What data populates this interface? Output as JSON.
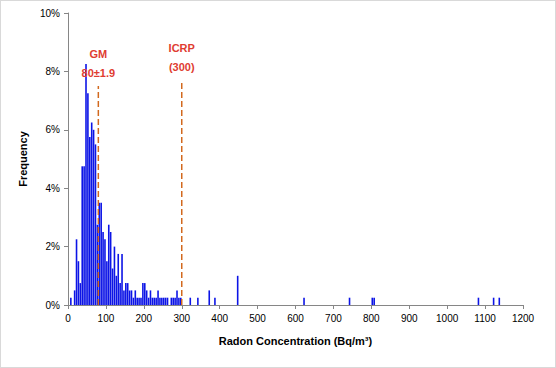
{
  "chart_data": {
    "type": "histogram",
    "x_label": "Radon Concentration (Bq/m³)",
    "y_label": "Frequency",
    "color": "#0c14e6",
    "grid": false,
    "bins": [
      0,
      5,
      10,
      15,
      20,
      25,
      30,
      35,
      40,
      45,
      50,
      55,
      60,
      65,
      70,
      75,
      80,
      85,
      90,
      95,
      100,
      105,
      110,
      115,
      120,
      125,
      130,
      135,
      140,
      145,
      150,
      155,
      160,
      165,
      170,
      175,
      180,
      185,
      190,
      195,
      200,
      205,
      210,
      215,
      220,
      225,
      230,
      235,
      240,
      245,
      250,
      255,
      260,
      265,
      270,
      275,
      280,
      285,
      290,
      295,
      300,
      305,
      310,
      315,
      320,
      325,
      330,
      335,
      340,
      345,
      350,
      355,
      360,
      365,
      370,
      375,
      380,
      385,
      390,
      395,
      400,
      405,
      410,
      415,
      420,
      425,
      430,
      435,
      440,
      445,
      450,
      455,
      460,
      465,
      470,
      475,
      480,
      485,
      490,
      495,
      500,
      505,
      510,
      515,
      520,
      525,
      530,
      535,
      540,
      545,
      550,
      555,
      560,
      565,
      570,
      575,
      580,
      585,
      590,
      595,
      600,
      605,
      610,
      615,
      620,
      625,
      630,
      635,
      640,
      645,
      650,
      655,
      660,
      665,
      670,
      675,
      680,
      685,
      690,
      695,
      700,
      705,
      710,
      715,
      720,
      725,
      730,
      735,
      740,
      745,
      750,
      755,
      760,
      765,
      770,
      775,
      780,
      785,
      790,
      795,
      800,
      805,
      810,
      815,
      820,
      825,
      830,
      835,
      840,
      845,
      850,
      855,
      860,
      865,
      870,
      875,
      880,
      885,
      890,
      895,
      900,
      905,
      910,
      915,
      920,
      925,
      930,
      935,
      940,
      945,
      950,
      955,
      960,
      965,
      970,
      975,
      980,
      985,
      990,
      995,
      1000,
      1005,
      1010,
      1015,
      1020,
      1025,
      1030,
      1035,
      1040,
      1045,
      1050,
      1055,
      1060,
      1065,
      1070,
      1075,
      1080,
      1085,
      1090,
      1095,
      1100,
      1105,
      1110,
      1115,
      1120,
      1125,
      1130,
      1135,
      1140,
      1145,
      1150,
      1155,
      1160,
      1165,
      1170,
      1175,
      1180,
      1185,
      1190,
      1195,
      1200
    ],
    "values": [
      0,
      0.25,
      0,
      0.5,
      2.25,
      1.5,
      0.75,
      4.75,
      4.75,
      8.25,
      7.25,
      5.75,
      6.25,
      6,
      5.5,
      2.75,
      3.5,
      3.5,
      2.5,
      2.25,
      1.5,
      2.75,
      2.5,
      1.25,
      2,
      1,
      1.75,
      0.75,
      1.75,
      0.5,
      0.75,
      0.75,
      0.5,
      0.5,
      0.25,
      0.5,
      0.25,
      0.25,
      0.25,
      0.75,
      0.75,
      0.5,
      0.25,
      0.5,
      0.25,
      0.25,
      0.25,
      0.5,
      0.25,
      0.25,
      0.25,
      0.25,
      0.25,
      0,
      0.25,
      0.25,
      0.25,
      0.5,
      0.25,
      0.25,
      0,
      0,
      0,
      0,
      0.25,
      0,
      0,
      0,
      0.25,
      0,
      0,
      0,
      0,
      0,
      0.5,
      0,
      0,
      0.25,
      0,
      0,
      0,
      0,
      0,
      0,
      0,
      0,
      0,
      0,
      0,
      1,
      0,
      0,
      0,
      0,
      0,
      0,
      0,
      0,
      0,
      0,
      0,
      0,
      0,
      0,
      0,
      0,
      0,
      0,
      0,
      0,
      0,
      0,
      0,
      0,
      0,
      0,
      0,
      0,
      0,
      0,
      0,
      0,
      0,
      0,
      0.25,
      0,
      0,
      0,
      0,
      0,
      0,
      0,
      0,
      0,
      0,
      0,
      0,
      0,
      0,
      0,
      0,
      0,
      0,
      0,
      0,
      0,
      0,
      0,
      0.25,
      0,
      0,
      0,
      0,
      0,
      0,
      0,
      0,
      0,
      0,
      0,
      0.25,
      0.25,
      0,
      0,
      0,
      0,
      0,
      0,
      0,
      0,
      0,
      0,
      0,
      0,
      0,
      0,
      0,
      0,
      0,
      0,
      0,
      0,
      0,
      0,
      0,
      0,
      0,
      0,
      0,
      0,
      0,
      0,
      0,
      0,
      0,
      0,
      0,
      0,
      0,
      0,
      0,
      0,
      0,
      0,
      0,
      0,
      0,
      0,
      0,
      0,
      0,
      0,
      0,
      0,
      0,
      0,
      0.25,
      0,
      0,
      0,
      0,
      0,
      0,
      0,
      0.25,
      0,
      0,
      0.25,
      0,
      0,
      0,
      0,
      0,
      0,
      0,
      0,
      0,
      0,
      0,
      0
    ],
    "xlim": [
      0,
      1200
    ],
    "xticks": [
      0,
      100,
      200,
      300,
      400,
      500,
      600,
      700,
      800,
      900,
      1000,
      1100,
      1200
    ],
    "ylim": [
      0,
      10
    ],
    "yticks": [
      {
        "value": 0,
        "label": "0%"
      },
      {
        "value": 2,
        "label": "2%"
      },
      {
        "value": 4,
        "label": "4%"
      },
      {
        "value": 6,
        "label": "6%"
      },
      {
        "value": 8,
        "label": "8%"
      },
      {
        "value": 10,
        "label": "10%"
      }
    ],
    "annotations": [
      {
        "text": [
          "GM",
          "80±1.9"
        ],
        "x": 80,
        "y": 7.5,
        "color": "#e03c31",
        "line_style": "dashed"
      },
      {
        "text": [
          "ICRP",
          "(300)"
        ],
        "x": 300,
        "y": 7.7,
        "color": "#e03c31",
        "line_style": "dashed"
      }
    ]
  }
}
